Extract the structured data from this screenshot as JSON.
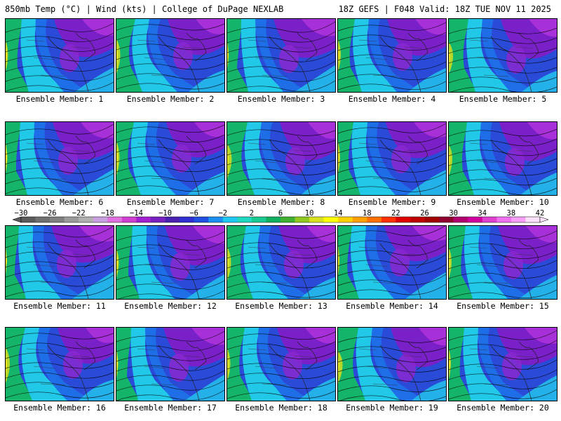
{
  "header": {
    "title": "850mb Temp (°C) | Wind (kts) | College of DuPage NEXLAB",
    "run_info": "18Z GEFS | F048 Valid: 18Z TUE NOV 11 2025"
  },
  "members": [
    "Ensemble Member: 1",
    "Ensemble Member: 2",
    "Ensemble Member: 3",
    "Ensemble Member: 4",
    "Ensemble Member: 5",
    "Ensemble Member: 6",
    "Ensemble Member: 7",
    "Ensemble Member: 8",
    "Ensemble Member: 9",
    "Ensemble Member: 10",
    "Ensemble Member: 11",
    "Ensemble Member: 12",
    "Ensemble Member: 13",
    "Ensemble Member: 14",
    "Ensemble Member: 15",
    "Ensemble Member: 16",
    "Ensemble Member: 17",
    "Ensemble Member: 18",
    "Ensemble Member: 19",
    "Ensemble Member: 20"
  ],
  "colorbar": {
    "tick_labels": [
      "-30",
      "-26",
      "-22",
      "-18",
      "-14",
      "-10",
      "-6",
      "-2",
      "2",
      "6",
      "10",
      "14",
      "18",
      "22",
      "26",
      "30",
      "34",
      "38",
      "42"
    ],
    "colors": [
      "#5a5a5a",
      "#707070",
      "#808080",
      "#9a9a9a",
      "#b0b0b0",
      "#c8a0e0",
      "#e070e0",
      "#d040d0",
      "#a020d0",
      "#7a20c0",
      "#4a20b0",
      "#3030d0",
      "#2050e0",
      "#1c90f0",
      "#20c8f0",
      "#20d8c0",
      "#18c890",
      "#10b060",
      "#40b030",
      "#90c820",
      "#d8e020",
      "#ffff00",
      "#ffd000",
      "#ffa000",
      "#ff7000",
      "#ff3000",
      "#e00000",
      "#c00000",
      "#a00000",
      "#900030",
      "#b00070",
      "#d000a0",
      "#e040d0",
      "#f070f0",
      "#f8a0f8",
      "#fce0fc"
    ]
  }
}
